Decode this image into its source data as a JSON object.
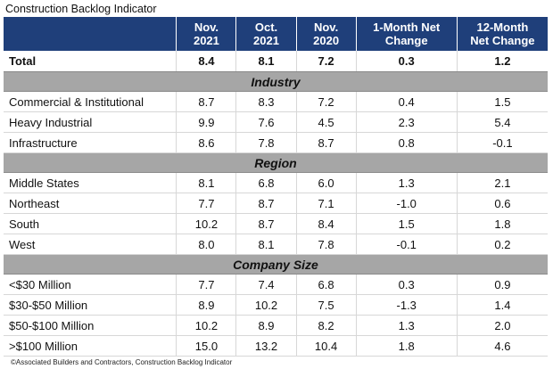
{
  "title": "Construction Backlog Indicator",
  "source": "©Associated Builders and Contractors, Construction Backlog Indicator",
  "header": {
    "col_1": [
      "Nov.",
      "2021"
    ],
    "col_2": [
      "Oct.",
      "2021"
    ],
    "col_3": [
      "Nov.",
      "2020"
    ],
    "col_4": [
      "1-Month Net",
      "Change"
    ],
    "col_5": [
      "12-Month",
      "Net Change"
    ]
  },
  "colors": {
    "header_bg": "#1f3f7a",
    "section_bg": "#a6a6a6"
  },
  "chart_data": {
    "type": "table",
    "title": "Construction Backlog Indicator",
    "columns": [
      "",
      "Nov. 2021",
      "Oct. 2021",
      "Nov. 2020",
      "1-Month Net Change",
      "12-Month Net Change"
    ],
    "total": {
      "label": "Total",
      "values": [
        "8.4",
        "8.1",
        "7.2",
        "0.3",
        "1.2"
      ]
    },
    "sections": [
      {
        "name": "Industry",
        "rows": [
          {
            "label": "Commercial & Institutional",
            "values": [
              "8.7",
              "8.3",
              "7.2",
              "0.4",
              "1.5"
            ]
          },
          {
            "label": "Heavy Industrial",
            "values": [
              "9.9",
              "7.6",
              "4.5",
              "2.3",
              "5.4"
            ]
          },
          {
            "label": "Infrastructure",
            "values": [
              "8.6",
              "7.8",
              "8.7",
              "0.8",
              "-0.1"
            ]
          }
        ]
      },
      {
        "name": "Region",
        "rows": [
          {
            "label": "Middle States",
            "values": [
              "8.1",
              "6.8",
              "6.0",
              "1.3",
              "2.1"
            ]
          },
          {
            "label": "Northeast",
            "values": [
              "7.7",
              "8.7",
              "7.1",
              "-1.0",
              "0.6"
            ]
          },
          {
            "label": "South",
            "values": [
              "10.2",
              "8.7",
              "8.4",
              "1.5",
              "1.8"
            ]
          },
          {
            "label": "West",
            "values": [
              "8.0",
              "8.1",
              "7.8",
              "-0.1",
              "0.2"
            ]
          }
        ]
      },
      {
        "name": "Company Size",
        "rows": [
          {
            "label": "<$30 Million",
            "values": [
              "7.7",
              "7.4",
              "6.8",
              "0.3",
              "0.9"
            ]
          },
          {
            "label": "$30-$50 Million",
            "values": [
              "8.9",
              "10.2",
              "7.5",
              "-1.3",
              "1.4"
            ]
          },
          {
            "label": "$50-$100 Million",
            "values": [
              "10.2",
              "8.9",
              "8.2",
              "1.3",
              "2.0"
            ]
          },
          {
            "label": ">$100 Million",
            "values": [
              "15.0",
              "13.2",
              "10.4",
              "1.8",
              "4.6"
            ]
          }
        ]
      }
    ]
  }
}
